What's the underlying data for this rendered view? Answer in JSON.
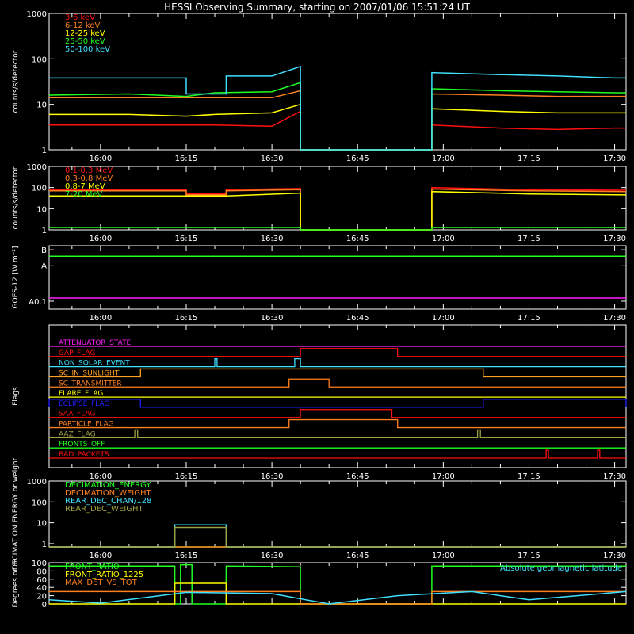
{
  "title": "HESSI Observing Summary, starting on 2007/01/06 15:51:24 UT",
  "colors": {
    "background": "#000000",
    "axis": "#ffffff",
    "red": "#ff1010",
    "orange": "#ff8020",
    "yellow": "#ffff00",
    "green": "#20ff20",
    "cyan": "#40e0ff",
    "magenta": "#ff20ff",
    "blue": "#2020ff",
    "olive": "#a0a040"
  },
  "chart_data": [
    {
      "type": "line",
      "id": "panel1",
      "ylabel": "counts/s/detector",
      "yscale": "log",
      "ylim": [
        1,
        1000
      ],
      "yticks": [
        {
          "value": 1,
          "label": "1"
        },
        {
          "value": 10,
          "label": "10"
        },
        {
          "value": 100,
          "label": "100"
        },
        {
          "value": 1000,
          "label": "1000"
        }
      ],
      "xlim": [
        "15:51",
        "17:32"
      ],
      "xticks": [
        "16:00",
        "16:15",
        "16:30",
        "16:45",
        "17:00",
        "17:15",
        "17:30"
      ],
      "legend": "top-left",
      "series": [
        {
          "name": "3-6 keV",
          "color": "#ff1010",
          "x": [
            "15:51",
            "16:05",
            "16:15",
            "16:20",
            "16:30",
            "16:35",
            "16:35",
            "16:58",
            "16:58",
            "17:10",
            "17:20",
            "17:30",
            "17:32"
          ],
          "y": [
            3.5,
            3.5,
            3.5,
            3.5,
            3.3,
            7,
            1,
            1,
            3.5,
            3,
            2.8,
            3,
            3
          ]
        },
        {
          "name": "6-12 keV",
          "color": "#ff8020",
          "x": [
            "15:51",
            "16:05",
            "16:15",
            "16:20",
            "16:30",
            "16:35",
            "16:35",
            "16:58",
            "16:58",
            "17:10",
            "17:20",
            "17:30",
            "17:32"
          ],
          "y": [
            14,
            14,
            14,
            14,
            14,
            20,
            1,
            1,
            17,
            16,
            15,
            15,
            15
          ]
        },
        {
          "name": "12-25 keV",
          "color": "#ffff00",
          "x": [
            "15:51",
            "16:05",
            "16:15",
            "16:20",
            "16:30",
            "16:35",
            "16:35",
            "16:58",
            "16:58",
            "17:10",
            "17:20",
            "17:30",
            "17:32"
          ],
          "y": [
            6,
            6,
            5.5,
            6,
            6.5,
            10,
            1,
            1,
            8,
            7,
            6.5,
            6.5,
            6.5
          ]
        },
        {
          "name": "25-50 keV",
          "color": "#20ff20",
          "x": [
            "15:51",
            "16:05",
            "16:15",
            "16:20",
            "16:30",
            "16:35",
            "16:35",
            "16:58",
            "16:58",
            "17:10",
            "17:20",
            "17:30",
            "17:32"
          ],
          "y": [
            16,
            17,
            15,
            18,
            19,
            30,
            1,
            1,
            22,
            20,
            19,
            18,
            18
          ]
        },
        {
          "name": "50-100 keV",
          "color": "#40e0ff",
          "x": [
            "15:51",
            "16:15",
            "16:15",
            "16:22",
            "16:22",
            "16:30",
            "16:35",
            "16:35",
            "16:58",
            "16:58",
            "17:10",
            "17:20",
            "17:30",
            "17:32"
          ],
          "y": [
            38,
            38,
            17,
            17,
            42,
            42,
            68,
            1,
            1,
            50,
            45,
            42,
            38,
            38
          ]
        }
      ]
    },
    {
      "type": "line",
      "id": "panel2",
      "ylabel": "counts/s/detector",
      "yscale": "log",
      "ylim": [
        1,
        1000
      ],
      "yticks": [
        {
          "value": 1,
          "label": "1"
        },
        {
          "value": 10,
          "label": "10"
        },
        {
          "value": 100,
          "label": "100"
        },
        {
          "value": 1000,
          "label": "1000"
        }
      ],
      "xlim": [
        "15:51",
        "17:32"
      ],
      "xticks": [
        "16:00",
        "16:15",
        "16:30",
        "16:45",
        "17:00",
        "17:15",
        "17:30"
      ],
      "legend": "top-left",
      "series": [
        {
          "name": "0.1-0.3 MeV",
          "color": "#ff1010",
          "x": [
            "15:51",
            "16:15",
            "16:15",
            "16:22",
            "16:22",
            "16:35",
            "16:35",
            "16:58",
            "16:58",
            "17:15",
            "17:32"
          ],
          "y": [
            80,
            80,
            50,
            50,
            80,
            90,
            1,
            1,
            100,
            80,
            75
          ]
        },
        {
          "name": "0.3-0.8 MeV",
          "color": "#ff8020",
          "x": [
            "15:51",
            "16:15",
            "16:15",
            "16:22",
            "16:22",
            "16:35",
            "16:35",
            "16:58",
            "16:58",
            "17:15",
            "17:32"
          ],
          "y": [
            70,
            70,
            45,
            45,
            70,
            80,
            1,
            1,
            85,
            70,
            65
          ]
        },
        {
          "name": "0.8-7 MeV",
          "color": "#ffff00",
          "x": [
            "15:51",
            "16:15",
            "16:22",
            "16:35",
            "16:35",
            "16:58",
            "16:58",
            "17:15",
            "17:32"
          ],
          "y": [
            40,
            40,
            40,
            55,
            1,
            1,
            65,
            50,
            45
          ]
        },
        {
          "name": "7-20 MeV",
          "color": "#20ff20",
          "x": [
            "15:51",
            "16:35",
            "16:35",
            "16:58",
            "16:58",
            "17:32"
          ],
          "y": [
            1.3,
            1.3,
            1,
            1,
            1.3,
            1.3
          ]
        }
      ]
    },
    {
      "type": "line",
      "id": "panel3",
      "ylabel": "GOES-12 [W m⁻²]",
      "yscale": "log",
      "ylim": [
        0.7,
        12
      ],
      "yticks": [
        {
          "value": 1,
          "label": "A0.1"
        },
        {
          "value": 5,
          "label": "A"
        },
        {
          "value": 10,
          "label": "B"
        }
      ],
      "xlim": [
        "15:51",
        "17:32"
      ],
      "xticks": [
        "16:00",
        "16:15",
        "16:30",
        "16:45",
        "17:00",
        "17:15",
        "17:30"
      ],
      "series": [
        {
          "name": "",
          "color": "#20ff20",
          "x": [
            "15:51",
            "17:32"
          ],
          "y": [
            7.5,
            7.5
          ]
        },
        {
          "name": "",
          "color": "#ff20ff",
          "x": [
            "15:51",
            "17:32"
          ],
          "y": [
            1.15,
            1.15
          ]
        }
      ]
    },
    {
      "type": "step",
      "id": "panel4",
      "ylabel": "Flags",
      "xlim": [
        "15:51",
        "17:32"
      ],
      "xticks": [
        "16:00",
        "16:15",
        "16:30",
        "16:45",
        "17:00",
        "17:15",
        "17:30"
      ],
      "flags": [
        {
          "name": "ATTENUATOR_STATE",
          "color": "#ff20ff",
          "on": []
        },
        {
          "name": "GAP_FLAG",
          "color": "#ff1010",
          "on": [
            [
              "16:35",
              "16:52"
            ]
          ]
        },
        {
          "name": "NON_SOLAR_EVENT",
          "color": "#40e0ff",
          "on": [
            [
              "16:20",
              "16:20.4"
            ],
            [
              "16:34",
              "16:35"
            ]
          ]
        },
        {
          "name": "SC_IN_SUNLIGHT",
          "color": "#ffa020",
          "on": [
            [
              "16:07",
              "17:07"
            ]
          ]
        },
        {
          "name": "SC_TRANSMITTER",
          "color": "#ff8020",
          "on": [
            [
              "16:33",
              "16:40"
            ]
          ]
        },
        {
          "name": "FLARE_FLAG",
          "color": "#ffff00",
          "on": []
        },
        {
          "name": "ECLIPSE_FLAG",
          "color": "#2020ff",
          "on": [
            [
              "15:51",
              "16:07"
            ],
            [
              "17:07",
              "17:32"
            ]
          ]
        },
        {
          "name": "SAA_FLAG",
          "color": "#ff1010",
          "on": [
            [
              "16:35",
              "16:51"
            ]
          ]
        },
        {
          "name": "PARTICLE_FLAG",
          "color": "#ff8020",
          "on": [
            [
              "16:33",
              "16:52"
            ]
          ]
        },
        {
          "name": "AAZ_FLAG",
          "color": "#a0a040",
          "on": [
            [
              "16:06",
              "16:06.5"
            ],
            [
              "17:06",
              "17:06.5"
            ]
          ]
        },
        {
          "name": "FRONTS_OFF",
          "color": "#20ff20",
          "on": []
        },
        {
          "name": "BAD_PACKETS",
          "color": "#ff1010",
          "on": [
            [
              "17:18",
              "17:18.4"
            ],
            [
              "17:27",
              "17:27.4"
            ]
          ]
        }
      ]
    },
    {
      "type": "line",
      "id": "panel5",
      "ylabel": "DECIMATION ENERGY or weight",
      "yscale": "log",
      "ylim": [
        0.7,
        1000
      ],
      "yticks": [
        {
          "value": 1,
          "label": "1"
        },
        {
          "value": 10,
          "label": "10"
        },
        {
          "value": 100,
          "label": "100"
        },
        {
          "value": 1000,
          "label": "1000"
        }
      ],
      "xlim": [
        "15:51",
        "17:32"
      ],
      "xticks": [
        "16:00",
        "16:15",
        "16:30",
        "16:45",
        "17:00",
        "17:15",
        "17:30"
      ],
      "legend": "top-left",
      "series": [
        {
          "name": "DECIMATION_ENERGY",
          "color": "#20ff20",
          "x": [
            "15:51",
            "17:32"
          ],
          "y": [
            0.7,
            0.7
          ]
        },
        {
          "name": "DECIMATION_WEIGHT",
          "color": "#ff8020",
          "x": [
            "15:51",
            "17:32"
          ],
          "y": [
            0.7,
            0.7
          ]
        },
        {
          "name": "REAR_DEC_CHAN/128",
          "color": "#40e0ff",
          "x": [
            "15:51",
            "16:13",
            "16:13",
            "16:22",
            "16:22",
            "17:32"
          ],
          "y": [
            0.7,
            0.7,
            8,
            8,
            0.7,
            0.7
          ]
        },
        {
          "name": "REAR_DEC_WEIGHT",
          "color": "#a0a040",
          "x": [
            "15:51",
            "16:13",
            "16:13",
            "16:22",
            "16:22",
            "17:32"
          ],
          "y": [
            0.7,
            0.7,
            6,
            6,
            0.7,
            0.7
          ]
        }
      ]
    },
    {
      "type": "line",
      "id": "panel6",
      "ylabel": "Degrees or %",
      "yscale": "linear",
      "ylim": [
        0,
        100
      ],
      "yticks": [
        {
          "value": 0,
          "label": "0"
        },
        {
          "value": 20,
          "label": "20"
        },
        {
          "value": 40,
          "label": "40"
        },
        {
          "value": 60,
          "label": "60"
        },
        {
          "value": 80,
          "label": "80"
        },
        {
          "value": 100,
          "label": "100"
        }
      ],
      "xlim": [
        "15:51",
        "17:32"
      ],
      "legend": "top-left",
      "annotation": "Absolute geomagnetic latitude",
      "series": [
        {
          "name": "FRONT_RATIO",
          "color": "#20ff20",
          "x": [
            "15:51",
            "16:12",
            "16:13",
            "16:13",
            "16:14",
            "16:14",
            "16:16",
            "16:16",
            "16:22",
            "16:22",
            "16:35",
            "16:35",
            "16:58",
            "16:58",
            "17:32"
          ],
          "y": [
            92,
            92,
            92,
            0,
            0,
            95,
            95,
            0,
            0,
            92,
            90,
            0,
            0,
            92,
            92
          ]
        },
        {
          "name": "FRONT_RATIO_1225",
          "color": "#ffff00",
          "x": [
            "15:51",
            "16:13",
            "16:13",
            "16:22",
            "16:22",
            "17:32"
          ],
          "y": [
            0,
            0,
            50,
            50,
            0,
            0
          ]
        },
        {
          "name": "MAX_DET_VS_TOT",
          "color": "#ff8020",
          "x": [
            "15:51",
            "16:35",
            "16:35",
            "16:58",
            "16:58",
            "17:32"
          ],
          "y": [
            30,
            30,
            0,
            0,
            30,
            30
          ]
        },
        {
          "name": "",
          "color": "#40e0ff",
          "x": [
            "15:51",
            "16:00",
            "16:15",
            "16:30",
            "16:40",
            "16:52",
            "17:05",
            "17:15",
            "17:32"
          ],
          "y": [
            10,
            2,
            28,
            25,
            0,
            20,
            30,
            10,
            30
          ]
        }
      ]
    }
  ]
}
